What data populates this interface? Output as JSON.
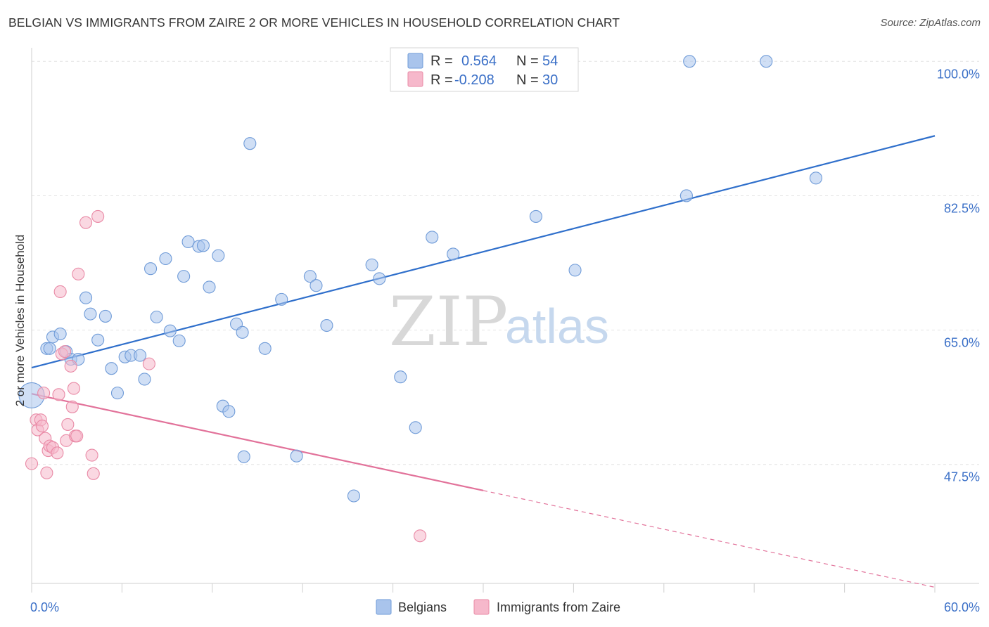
{
  "title": "BELGIAN VS IMMIGRANTS FROM ZAIRE 2 OR MORE VEHICLES IN HOUSEHOLD CORRELATION CHART",
  "source": "Source: ZipAtlas.com",
  "watermark": {
    "zip": "ZIP",
    "atlas": "atlas"
  },
  "legend_top": {
    "rows": [
      {
        "r_label": "R =",
        "r_value": "0.564",
        "n_label": "N =",
        "n_value": "54",
        "color": "#a9c4ec"
      },
      {
        "r_label": "R =",
        "r_value": "-0.208",
        "n_label": "N =",
        "n_value": "30",
        "color": "#f6b8cb"
      }
    ]
  },
  "legend_bottom": [
    {
      "label": "Belgians",
      "color": "#a9c4ec"
    },
    {
      "label": "Immigrants from Zaire",
      "color": "#f6b8cb"
    }
  ],
  "chart_data": {
    "type": "scatter",
    "title": "BELGIAN VS IMMIGRANTS FROM ZAIRE 2 OR MORE VEHICLES IN HOUSEHOLD CORRELATION CHART",
    "xlabel": "",
    "ylabel": "2 or more Vehicles in Household",
    "xlim": [
      0,
      60
    ],
    "ylim": [
      32.0,
      102.5
    ],
    "x_tick_labels": [
      {
        "value": 0,
        "label": "0.0%"
      },
      {
        "value": 60,
        "label": "60.0%"
      }
    ],
    "y_tick_labels": [
      {
        "value": 100.0,
        "label": "100.0%"
      },
      {
        "value": 82.5,
        "label": "82.5%"
      },
      {
        "value": 65.0,
        "label": "65.0%"
      },
      {
        "value": 47.5,
        "label": "47.5%"
      }
    ],
    "x_minor_ticks": [
      0,
      6,
      12,
      18,
      24,
      30,
      36,
      42,
      48,
      54,
      60
    ],
    "grid": true,
    "legend_position": "top-center",
    "series": [
      {
        "name": "Belgians",
        "color": "#a9c4ec",
        "stroke": "#6f9bd8",
        "trend": {
          "x": [
            0,
            60
          ],
          "y": [
            60.1,
            90.3
          ],
          "color": "#2f6fcb"
        },
        "points": [
          [
            0.0,
            56.5
          ],
          [
            1.0,
            62.6
          ],
          [
            1.2,
            62.6
          ],
          [
            1.4,
            64.1
          ],
          [
            1.9,
            64.5
          ],
          [
            2.3,
            62.2
          ],
          [
            2.6,
            61.2
          ],
          [
            3.1,
            61.2
          ],
          [
            3.6,
            69.2
          ],
          [
            3.9,
            67.1
          ],
          [
            4.4,
            63.7
          ],
          [
            4.9,
            66.8
          ],
          [
            5.3,
            60.0
          ],
          [
            5.7,
            56.8
          ],
          [
            6.2,
            61.5
          ],
          [
            6.6,
            61.7
          ],
          [
            7.2,
            61.7
          ],
          [
            7.5,
            58.6
          ],
          [
            7.9,
            73.0
          ],
          [
            8.3,
            66.7
          ],
          [
            8.9,
            74.3
          ],
          [
            9.2,
            64.9
          ],
          [
            9.8,
            63.6
          ],
          [
            10.1,
            72.0
          ],
          [
            10.4,
            76.5
          ],
          [
            11.1,
            75.9
          ],
          [
            11.4,
            76.0
          ],
          [
            11.8,
            70.6
          ],
          [
            12.4,
            74.7
          ],
          [
            12.7,
            55.1
          ],
          [
            13.1,
            54.4
          ],
          [
            13.6,
            65.8
          ],
          [
            14.0,
            64.7
          ],
          [
            14.1,
            48.5
          ],
          [
            14.5,
            89.3
          ],
          [
            15.5,
            62.6
          ],
          [
            16.6,
            69.0
          ],
          [
            17.6,
            48.6
          ],
          [
            18.5,
            72.0
          ],
          [
            18.9,
            70.8
          ],
          [
            19.6,
            65.6
          ],
          [
            21.4,
            43.4
          ],
          [
            22.6,
            73.5
          ],
          [
            23.1,
            71.7
          ],
          [
            24.5,
            58.9
          ],
          [
            25.5,
            52.3
          ],
          [
            26.6,
            77.1
          ],
          [
            28.0,
            74.9
          ],
          [
            33.5,
            79.8
          ],
          [
            36.1,
            72.8
          ],
          [
            43.5,
            82.5
          ],
          [
            43.7,
            100.0
          ],
          [
            48.8,
            100.0
          ],
          [
            52.1,
            84.8
          ]
        ]
      },
      {
        "name": "Immigrants from Zaire",
        "color": "#f6b8cb",
        "stroke": "#e98aa6",
        "trend": {
          "x": [
            0,
            30
          ],
          "y": [
            56.7,
            44.1
          ],
          "color": "#e2729a"
        },
        "trend_extension": {
          "x": [
            30,
            60
          ],
          "y": [
            44.1,
            31.5
          ]
        },
        "points": [
          [
            0.0,
            47.6
          ],
          [
            0.3,
            53.3
          ],
          [
            0.4,
            52.0
          ],
          [
            0.6,
            53.3
          ],
          [
            0.7,
            52.5
          ],
          [
            0.8,
            56.8
          ],
          [
            0.9,
            50.9
          ],
          [
            1.0,
            46.4
          ],
          [
            1.1,
            49.3
          ],
          [
            1.2,
            49.9
          ],
          [
            1.4,
            49.7
          ],
          [
            1.7,
            49.0
          ],
          [
            1.8,
            56.6
          ],
          [
            1.9,
            70.0
          ],
          [
            2.0,
            61.9
          ],
          [
            2.2,
            62.2
          ],
          [
            2.3,
            50.6
          ],
          [
            2.4,
            52.7
          ],
          [
            2.6,
            60.3
          ],
          [
            2.7,
            55.0
          ],
          [
            2.8,
            57.4
          ],
          [
            2.9,
            51.2
          ],
          [
            3.0,
            51.2
          ],
          [
            3.1,
            72.3
          ],
          [
            4.0,
            48.7
          ],
          [
            4.1,
            46.3
          ],
          [
            3.6,
            79.0
          ],
          [
            4.4,
            79.8
          ],
          [
            7.8,
            60.6
          ],
          [
            25.8,
            38.2
          ]
        ]
      }
    ]
  }
}
